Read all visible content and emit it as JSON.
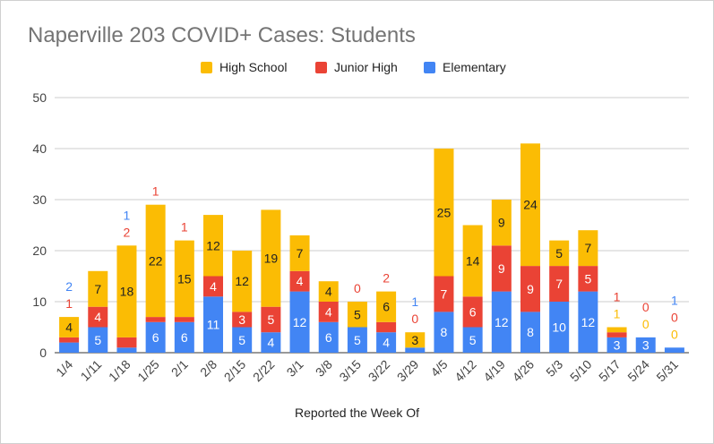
{
  "chart_data": {
    "type": "bar",
    "stacked": true,
    "title": "Naperville 203 COVID+ Cases: Students",
    "xlabel": "Reported the Week Of",
    "ylabel": "",
    "ylim": [
      0,
      50
    ],
    "yticks": [
      0,
      10,
      20,
      30,
      40,
      50
    ],
    "grid": true,
    "legend_position": "top",
    "categories": [
      "1/4",
      "1/11",
      "1/18",
      "1/25",
      "2/1",
      "2/8",
      "2/15",
      "2/22",
      "3/1",
      "3/8",
      "3/15",
      "3/22",
      "3/29",
      "4/5",
      "4/12",
      "4/19",
      "4/26",
      "5/3",
      "5/10",
      "5/17",
      "5/24",
      "5/31"
    ],
    "series": [
      {
        "name": "Elementary",
        "color": "#4285f4",
        "values": [
          2,
          5,
          1,
          6,
          6,
          11,
          5,
          4,
          12,
          6,
          5,
          4,
          1,
          8,
          5,
          12,
          8,
          10,
          12,
          3,
          3,
          1
        ]
      },
      {
        "name": "Junior High",
        "color": "#ea4335",
        "values": [
          1,
          4,
          2,
          1,
          1,
          4,
          3,
          5,
          4,
          4,
          0,
          2,
          0,
          7,
          6,
          9,
          9,
          7,
          5,
          1,
          0,
          0
        ]
      },
      {
        "name": "High School",
        "color": "#fbbc04",
        "values": [
          4,
          7,
          18,
          22,
          15,
          12,
          12,
          19,
          7,
          4,
          5,
          6,
          3,
          25,
          14,
          9,
          24,
          5,
          7,
          1,
          0,
          0
        ]
      }
    ]
  }
}
